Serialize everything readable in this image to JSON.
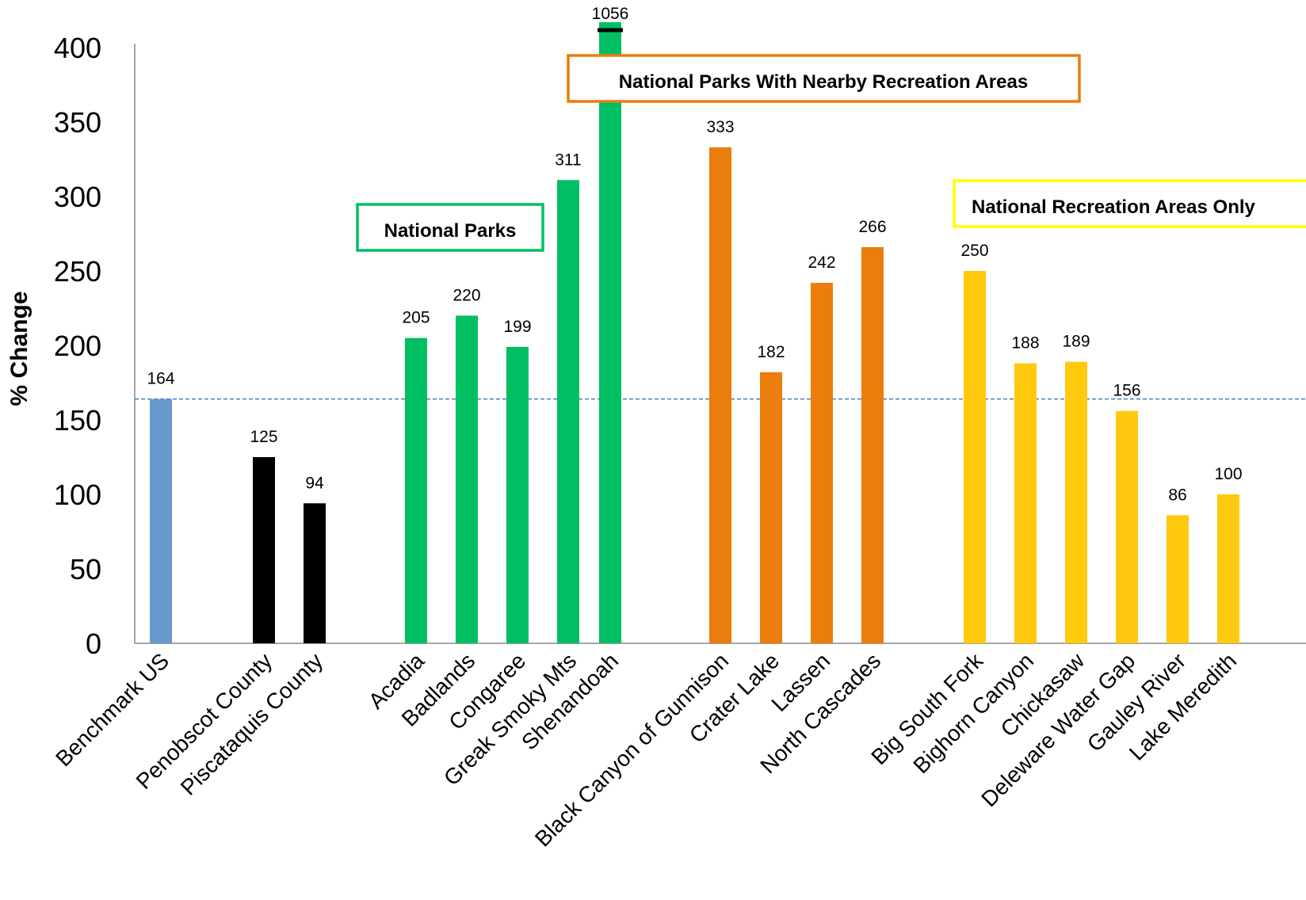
{
  "chart_data": {
    "type": "bar",
    "ylabel": "% Change",
    "xlabel": "",
    "ylim": [
      0,
      400
    ],
    "yticks": [
      0,
      50,
      100,
      150,
      200,
      250,
      300,
      350,
      400
    ],
    "grid": false,
    "reference_line": {
      "value": 164,
      "style": "dashed",
      "color": "#4a7ebb"
    },
    "categories": [
      "Benchmark US",
      "Penobscot County",
      "Piscataquis County",
      "Acadia",
      "Badlands",
      "Congaree",
      "Greak Smoky Mts",
      "Shenandoah",
      "Black Canyon of Gunnison",
      "Crater Lake",
      "Lassen",
      "North Cascades",
      "Big South Fork",
      "Bighorn Canyon",
      "Chickasaw",
      "Deleware Water Gap",
      "Gauley River",
      "Lake Meredith"
    ],
    "values": [
      164,
      125,
      94,
      205,
      220,
      199,
      311,
      1056,
      333,
      182,
      242,
      266,
      250,
      188,
      189,
      156,
      86,
      100
    ],
    "value_labels": [
      "164",
      "125",
      "94",
      "205",
      "220",
      "199",
      "311",
      "1056",
      "333",
      "182",
      "242",
      "266",
      "250",
      "188",
      "189",
      "156",
      "86",
      "100"
    ],
    "truncated": {
      "category": "Shenandoah",
      "value": 1056,
      "axis_break": true
    },
    "colors": {
      "Benchmark US": "#6699cc",
      "county": "#000000",
      "national_parks": "#00bf63",
      "parks_with_recreation": "#ea7d0c",
      "recreation_only": "#ffc90e"
    },
    "bar_colors": [
      "#6699cc",
      "#000000",
      "#000000",
      "#00bf63",
      "#00bf63",
      "#00bf63",
      "#00bf63",
      "#00bf63",
      "#ea7d0c",
      "#ea7d0c",
      "#ea7d0c",
      "#ea7d0c",
      "#ffc90e",
      "#ffc90e",
      "#ffc90e",
      "#ffc90e",
      "#ffc90e",
      "#ffc90e"
    ],
    "annotations": [
      {
        "text": "National Parks",
        "border_color": "#00bf63"
      },
      {
        "text": "National Parks With Nearby Recreation Areas",
        "border_color": "#ea7d0c"
      },
      {
        "text": "National Recreation Areas Only",
        "border_color": "#ffff00"
      }
    ]
  }
}
